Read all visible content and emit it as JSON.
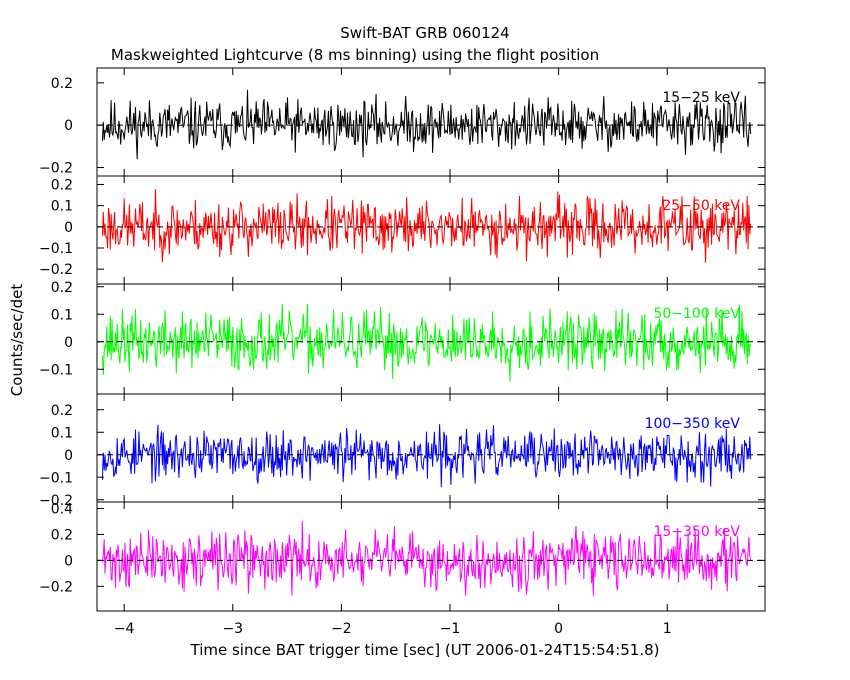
{
  "chart_data": {
    "type": "line",
    "title": "Swift-BAT GRB 060124",
    "subtitle": "Maskweighted Lightcurve (8 ms binning) using the flight position",
    "xlabel": "Time since BAT trigger time [sec] (UT 2006-01-24T15:54:51.8)",
    "ylabel": "Counts/sec/det",
    "xlim": [
      -4.25,
      1.9
    ],
    "x_range_data": [
      -4.2,
      1.77
    ],
    "bin_width_sec": 0.008,
    "x_ticks": [
      -4,
      -3,
      -2,
      -1,
      0,
      1
    ],
    "x_tick_labels": [
      "−4",
      "−3",
      "−2",
      "−1",
      "0",
      "1"
    ],
    "grid": false,
    "legend": "none",
    "panels": [
      {
        "name": "15-25 keV",
        "label": "15−25 keV",
        "color": "#000000",
        "ylim": [
          -0.24,
          0.27
        ],
        "yticks": [
          -0.2,
          0,
          0.2
        ],
        "ytick_labels": [
          "−0.2",
          "0",
          "0.2"
        ],
        "noise_amplitude": 0.11,
        "seed": 11
      },
      {
        "name": "25-50 keV",
        "label": "25−50 keV",
        "color": "#ff0000",
        "ylim": [
          -0.27,
          0.24
        ],
        "yticks": [
          -0.2,
          -0.1,
          0,
          0.1,
          0.2
        ],
        "ytick_labels": [
          "−0.2",
          "−0.1",
          "0",
          "0.1",
          "0.2"
        ],
        "noise_amplitude": 0.12,
        "seed": 23
      },
      {
        "name": "50-100 keV",
        "label": "50−100 keV",
        "color": "#00ff00",
        "ylim": [
          -0.19,
          0.21
        ],
        "yticks": [
          -0.1,
          0,
          0.1,
          0.2
        ],
        "ytick_labels": [
          "−0.1",
          "0",
          "0.1",
          "0.2"
        ],
        "noise_amplitude": 0.1,
        "seed": 37
      },
      {
        "name": "100-350 keV",
        "label": "100−350 keV",
        "color": "#0000ff",
        "ylim": [
          -0.21,
          0.27
        ],
        "yticks": [
          -0.2,
          -0.1,
          0,
          0.1,
          0.2
        ],
        "ytick_labels": [
          "−0.2",
          "−0.1",
          "0",
          "0.1",
          "0.2"
        ],
        "noise_amplitude": 0.1,
        "seed": 53
      },
      {
        "name": "15-350 keV",
        "label": "15−350 keV",
        "color": "#ff00ff",
        "ylim": [
          -0.39,
          0.45
        ],
        "yticks": [
          -0.2,
          0,
          0.2,
          0.4
        ],
        "ytick_labels": [
          "−0.2",
          "0",
          "0.2",
          "0.4"
        ],
        "noise_amplitude": 0.2,
        "seed": 71
      }
    ]
  }
}
